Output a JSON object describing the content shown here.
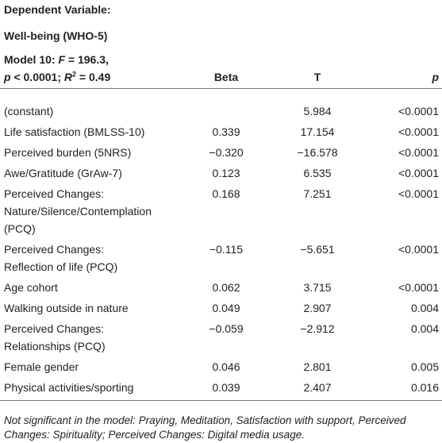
{
  "header": {
    "line1": "Dependent Variable:",
    "line2": "Well-being (WHO-5)",
    "model": [
      "Model 10: ",
      "F",
      " = 196.3,",
      "p",
      " < 0.0001; ",
      "R",
      "2",
      " = 0.49"
    ],
    "columns": [
      "Beta",
      "T",
      "p"
    ]
  },
  "table": {
    "rows": [
      {
        "label": [
          "(constant)"
        ],
        "beta": null,
        "t": "5.984",
        "p": "<0.0001"
      },
      {
        "label": [
          "Life satisfaction (BMLSS-10)"
        ],
        "beta": "0.339",
        "t": "17.154",
        "p": "<0.0001"
      },
      {
        "label": [
          "Perceived burden (5NRS)"
        ],
        "beta": "−0.320",
        "t": "−16.578",
        "p": "<0.0001"
      },
      {
        "label": [
          "Awe/Gratitude (GrAw-7)"
        ],
        "beta": "0.123",
        "t": "6.535",
        "p": "<0.0001"
      },
      {
        "label": [
          "Perceived Changes:",
          "Nature/Silence/Contemplation",
          "(PCQ)"
        ],
        "beta": "0.168",
        "t": "7.251",
        "p": "<0.0001"
      },
      {
        "label": [
          "Perceived Changes:",
          "Reflection of life (PCQ)"
        ],
        "beta": "−0.115",
        "t": "−5.651",
        "p": "<0.0001"
      },
      {
        "label": [
          "Age cohort"
        ],
        "beta": "0.062",
        "t": "3.715",
        "p": "<0.0001"
      },
      {
        "label": [
          "Walking outside in nature"
        ],
        "beta": "0.049",
        "t": "2.907",
        "p": "0.004"
      },
      {
        "label": [
          "Perceived Changes:",
          "Relationships (PCQ)"
        ],
        "beta": "−0.059",
        "t": "−2.912",
        "p": "0.004"
      },
      {
        "label": [
          "Female gender"
        ],
        "beta": "0.046",
        "t": "2.801",
        "p": "0.005"
      },
      {
        "label": [
          "Physical activities/sporting"
        ],
        "beta": "0.039",
        "t": "2.407",
        "p": "0.016"
      }
    ]
  },
  "note": "Not significant in the model: Praying, Meditation, Satisfaction with support, Perceived Changes: Spirituality; Perceived Changes: Digital media usage."
}
